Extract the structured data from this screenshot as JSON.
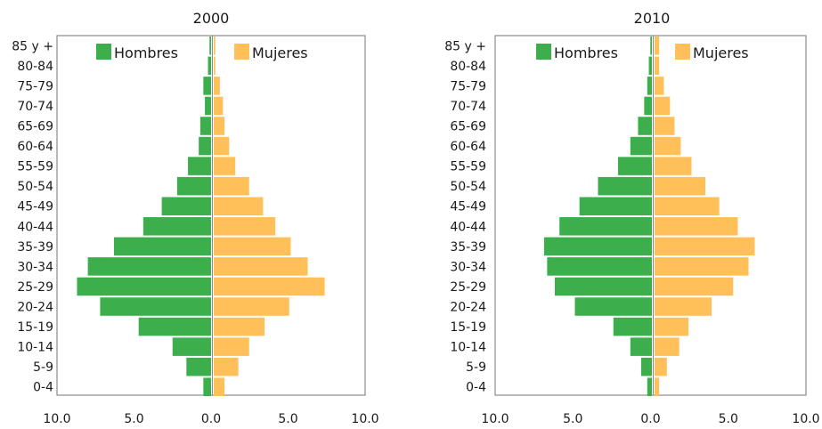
{
  "chart_data": [
    {
      "type": "bar",
      "orientation": "horizontal",
      "title": "2000",
      "categories": [
        "85 y +",
        "80-84",
        "75-79",
        "70-74",
        "65-69",
        "60-64",
        "55-59",
        "50-54",
        "45-49",
        "40-44",
        "35-39",
        "30-34",
        "25-29",
        "20-24",
        "15-19",
        "10-14",
        "5-9",
        "0-4"
      ],
      "series": [
        {
          "name": "Hombres",
          "color": "#3cae4c",
          "values": [
            0.1,
            0.2,
            0.5,
            0.4,
            0.7,
            0.8,
            1.5,
            2.2,
            3.2,
            4.4,
            6.3,
            8.0,
            8.7,
            7.2,
            4.7,
            2.5,
            1.6,
            0.5
          ]
        },
        {
          "name": "Mujeres",
          "color": "#ffc05a",
          "values": [
            0.1,
            0.1,
            0.4,
            0.6,
            0.7,
            1.0,
            1.4,
            2.3,
            3.2,
            4.0,
            5.0,
            6.1,
            7.2,
            4.9,
            3.3,
            2.3,
            1.6,
            0.7
          ]
        }
      ],
      "xlim": [
        -10,
        10
      ],
      "xticks": [
        "10.0",
        "5.0",
        "0.0",
        "5.0",
        "10.0"
      ],
      "legend": "top"
    },
    {
      "type": "bar",
      "orientation": "horizontal",
      "title": "2010",
      "categories": [
        "85 y +",
        "80-84",
        "75-79",
        "70-74",
        "65-69",
        "60-64",
        "55-59",
        "50-54",
        "45-49",
        "40-44",
        "35-39",
        "30-34",
        "25-29",
        "20-24",
        "15-19",
        "10-14",
        "5-9",
        "0-4"
      ],
      "series": [
        {
          "name": "Hombres",
          "color": "#3cae4c",
          "values": [
            0.1,
            0.2,
            0.3,
            0.5,
            0.9,
            1.4,
            2.2,
            3.5,
            4.7,
            6.0,
            7.0,
            6.8,
            6.3,
            5.0,
            2.5,
            1.4,
            0.7,
            0.3
          ]
        },
        {
          "name": "Mujeres",
          "color": "#ffc05a",
          "values": [
            0.3,
            0.3,
            0.6,
            1.0,
            1.3,
            1.7,
            2.4,
            3.3,
            4.2,
            5.4,
            6.5,
            6.1,
            5.1,
            3.7,
            2.2,
            1.6,
            0.8,
            0.3
          ]
        }
      ],
      "xlim": [
        -10,
        10
      ],
      "xticks": [
        "10.0",
        "5.0",
        "0.0",
        "5.0",
        "10.0"
      ],
      "legend": "top"
    }
  ]
}
